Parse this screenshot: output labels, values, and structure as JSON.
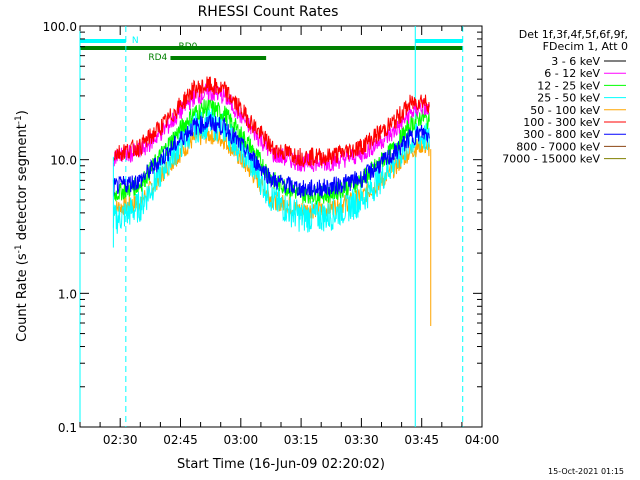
{
  "chart_data": {
    "type": "line",
    "title": "RHESSI Count Rates",
    "xlabel": "Start Time (16-Jun-09 02:20:02)",
    "ylabel_parts": [
      "Count Rate (s",
      "-1",
      " detector segment",
      "-1",
      ")"
    ],
    "yscale": "log",
    "ylim": [
      0.1,
      100
    ],
    "xlim_minutes": [
      0,
      100
    ],
    "y_ticks": [
      {
        "value": 0.1,
        "label": "0.1"
      },
      {
        "value": 1,
        "label": "1.0"
      },
      {
        "value": 10,
        "label": "10.0"
      },
      {
        "value": 100,
        "label": "100.0"
      }
    ],
    "x_ticks": [
      {
        "t": 10,
        "label": "02:30"
      },
      {
        "t": 25,
        "label": "02:45"
      },
      {
        "t": 40,
        "label": "03:00"
      },
      {
        "t": 55,
        "label": "03:15"
      },
      {
        "t": 70,
        "label": "03:30"
      },
      {
        "t": 85,
        "label": "03:45"
      },
      {
        "t": 100,
        "label": "04:00"
      }
    ],
    "legend_header": [
      "Det 1f,3f,4f,5f,6f,9f,",
      "FDecim 1, Att 0"
    ],
    "legend_placement": "right",
    "x_axis_note": "x values are minutes after 02:20:00 UT on 16-Jun-09",
    "series": [
      {
        "name": "3 - 6 keV",
        "color": "#000000",
        "points": []
      },
      {
        "name": "6 - 12 keV",
        "color": "#ff00ff",
        "points": [
          [
            8.3,
            10.5
          ],
          [
            15,
            11.5
          ],
          [
            22,
            18
          ],
          [
            28,
            29
          ],
          [
            32,
            32
          ],
          [
            36,
            30
          ],
          [
            42,
            18
          ],
          [
            48,
            11
          ],
          [
            55,
            9.5
          ],
          [
            62,
            9.5
          ],
          [
            70,
            11
          ],
          [
            78,
            16
          ],
          [
            82,
            22
          ],
          [
            85,
            25
          ],
          [
            87,
            23
          ]
        ]
      },
      {
        "name": "12 - 25 keV",
        "color": "#00ff00",
        "points": [
          [
            8.3,
            5.5
          ],
          [
            15,
            6.5
          ],
          [
            22,
            13
          ],
          [
            28,
            22
          ],
          [
            32,
            25
          ],
          [
            36,
            22
          ],
          [
            42,
            13
          ],
          [
            48,
            7
          ],
          [
            55,
            5.5
          ],
          [
            62,
            5.5
          ],
          [
            70,
            7
          ],
          [
            78,
            12
          ],
          [
            82,
            18
          ],
          [
            85,
            21
          ],
          [
            87,
            19
          ]
        ]
      },
      {
        "name": "25 - 50 keV",
        "color": "#00ffff",
        "points": [
          [
            8.3,
            3.5
          ],
          [
            15,
            4.5
          ],
          [
            22,
            10
          ],
          [
            28,
            17
          ],
          [
            32,
            19
          ],
          [
            36,
            17
          ],
          [
            42,
            10
          ],
          [
            48,
            5
          ],
          [
            55,
            3.7
          ],
          [
            62,
            3.8
          ],
          [
            70,
            5
          ],
          [
            78,
            9.5
          ],
          [
            82,
            13.5
          ],
          [
            85,
            15
          ],
          [
            87,
            14
          ]
        ]
      },
      {
        "name": "50 - 100 keV",
        "color": "#ffa500",
        "points": [
          [
            8.3,
            4.3
          ],
          [
            15,
            4.8
          ],
          [
            22,
            9
          ],
          [
            28,
            14
          ],
          [
            32,
            15.5
          ],
          [
            36,
            14
          ],
          [
            42,
            8.5
          ],
          [
            48,
            5
          ],
          [
            55,
            4.2
          ],
          [
            62,
            4.3
          ],
          [
            70,
            5.2
          ],
          [
            78,
            8.5
          ],
          [
            82,
            11.5
          ],
          [
            85,
            13
          ],
          [
            87,
            12
          ]
        ]
      },
      {
        "name": "100 - 300 keV",
        "color": "#ff0000",
        "points": [
          [
            8.3,
            11
          ],
          [
            15,
            12.5
          ],
          [
            22,
            20
          ],
          [
            28,
            33
          ],
          [
            32,
            36
          ],
          [
            36,
            33
          ],
          [
            42,
            20
          ],
          [
            48,
            12
          ],
          [
            55,
            10.5
          ],
          [
            62,
            10.5
          ],
          [
            70,
            12.5
          ],
          [
            78,
            19
          ],
          [
            82,
            26
          ],
          [
            85,
            28
          ],
          [
            87,
            26
          ]
        ]
      },
      {
        "name": "300 - 800 keV",
        "color": "#0000ff",
        "points": [
          [
            8.3,
            6.2
          ],
          [
            15,
            7
          ],
          [
            22,
            11.5
          ],
          [
            28,
            17.5
          ],
          [
            32,
            19
          ],
          [
            36,
            17.5
          ],
          [
            42,
            11
          ],
          [
            48,
            7
          ],
          [
            55,
            6
          ],
          [
            62,
            6.2
          ],
          [
            70,
            7.2
          ],
          [
            78,
            11
          ],
          [
            82,
            14.5
          ],
          [
            85,
            16
          ],
          [
            87,
            15
          ]
        ]
      },
      {
        "name": "800 - 7000 keV",
        "color": "#8b4513",
        "points": []
      },
      {
        "name": "7000 - 15000 keV",
        "color": "#808000",
        "points": []
      }
    ],
    "vertical_lines": [
      {
        "t": 0,
        "color": "#00ffff",
        "style": "solid"
      },
      {
        "t": 11.4,
        "color": "#00ffff",
        "style": "dashed"
      },
      {
        "t": 83.4,
        "color": "#00ffff",
        "style": "solid"
      },
      {
        "t": 95.2,
        "color": "#00ffff",
        "style": "dashed"
      }
    ],
    "flag_bars": [
      {
        "label": "N",
        "color": "#00ffff",
        "segments": [
          [
            0,
            11.4
          ],
          [
            83.4,
            95.2
          ]
        ],
        "row": 0
      },
      {
        "label": "RD0",
        "color": "#008000",
        "segments": [
          [
            0,
            95.2
          ]
        ],
        "row": 1
      },
      {
        "label": "RD4",
        "color": "#008000",
        "segments": [
          [
            22.5,
            46.3
          ]
        ],
        "row": 2
      }
    ],
    "grid": false
  },
  "footer": {
    "timestamp": "15-Oct-2021 01:15"
  }
}
